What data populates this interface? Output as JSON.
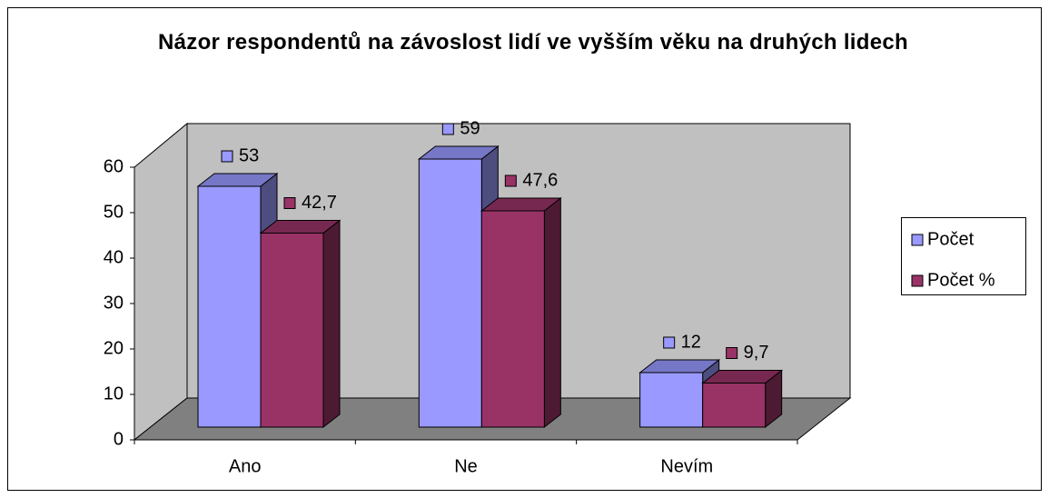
{
  "chart_data": {
    "type": "bar3d",
    "title": "Názor respondentů na závoslost lidí ve vyšším věku na druhých lidech",
    "categories": [
      "Ano",
      "Ne",
      "Nevím"
    ],
    "series": [
      {
        "name": "Počet",
        "color": "#9999ff",
        "values": [
          53,
          59,
          12
        ]
      },
      {
        "name": "Počet %",
        "color": "#993366",
        "values": [
          42.7,
          47.6,
          9.7
        ],
        "value_labels": [
          "42,7",
          "47,6",
          "9,7"
        ]
      }
    ],
    "ylim": [
      0,
      60
    ],
    "yticks": [
      0,
      10,
      20,
      30,
      40,
      50,
      60
    ],
    "legend": "right"
  }
}
